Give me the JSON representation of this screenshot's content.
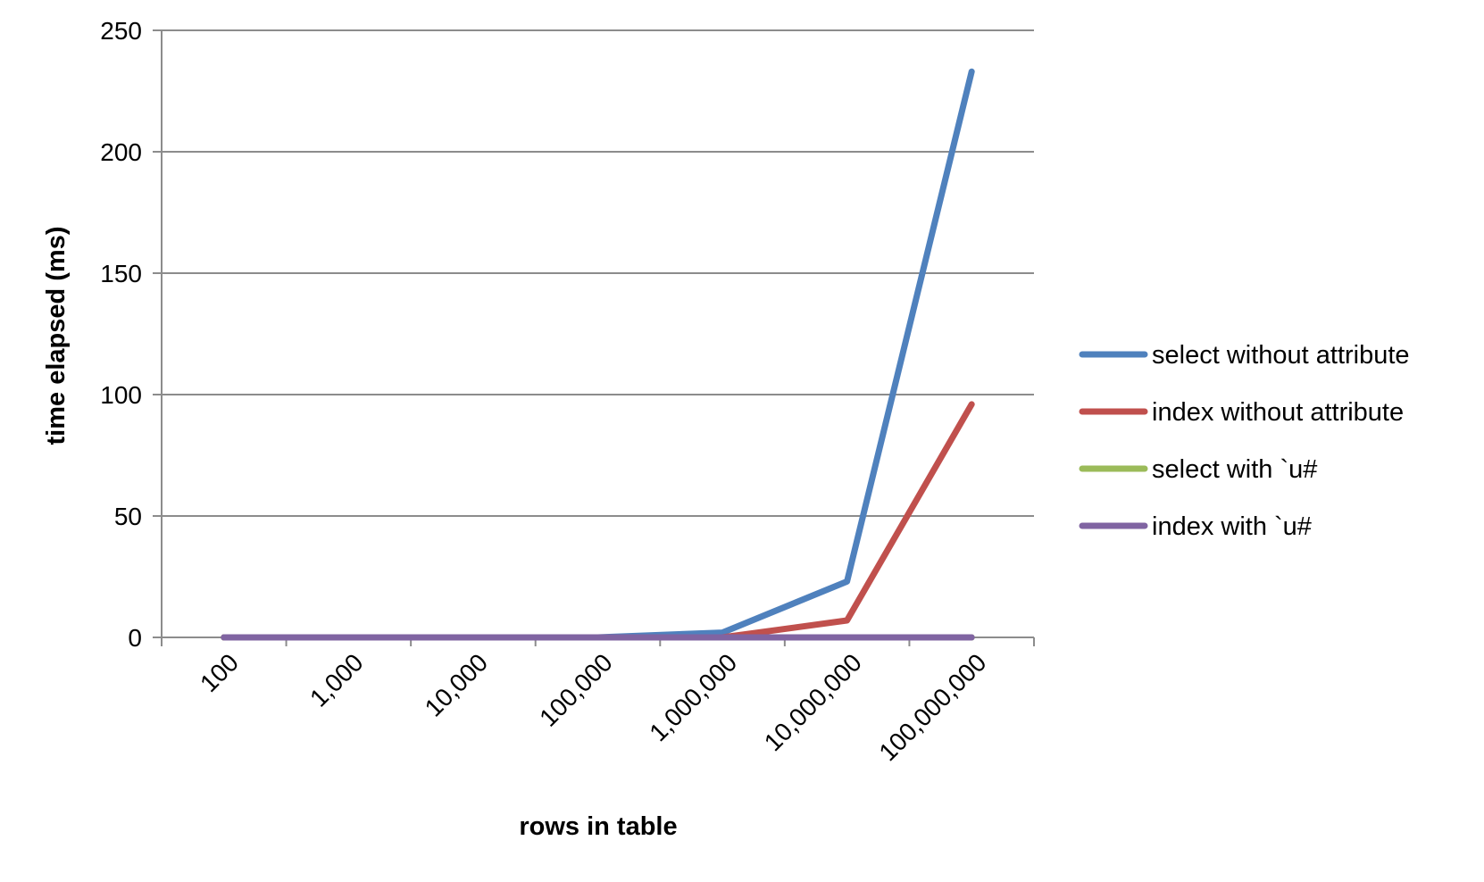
{
  "chart_data": {
    "type": "line",
    "categories": [
      "100",
      "1,000",
      "10,000",
      "100,000",
      "1,000,000",
      "10,000,000",
      "100,000,000"
    ],
    "series": [
      {
        "name": "select without attribute",
        "color": "#4F81BD",
        "values": [
          0,
          0,
          0,
          0,
          2,
          23,
          233
        ]
      },
      {
        "name": "index without attribute",
        "color": "#C0504D",
        "values": [
          0,
          0,
          0,
          0,
          0,
          7,
          96
        ]
      },
      {
        "name": "select with `u#",
        "color": "#9BBB59",
        "values": [
          0,
          0,
          0,
          0,
          0,
          0,
          0
        ]
      },
      {
        "name": "index with `u#",
        "color": "#8064A2",
        "values": [
          0,
          0,
          0,
          0,
          0,
          0,
          0
        ]
      }
    ],
    "title": "",
    "xlabel": "rows in table",
    "ylabel": "time elapsed (ms)",
    "ylim": [
      0,
      250
    ],
    "yticks": [
      "0",
      "50",
      "100",
      "150",
      "200",
      "250"
    ],
    "grid": true,
    "legend_position": "right"
  }
}
